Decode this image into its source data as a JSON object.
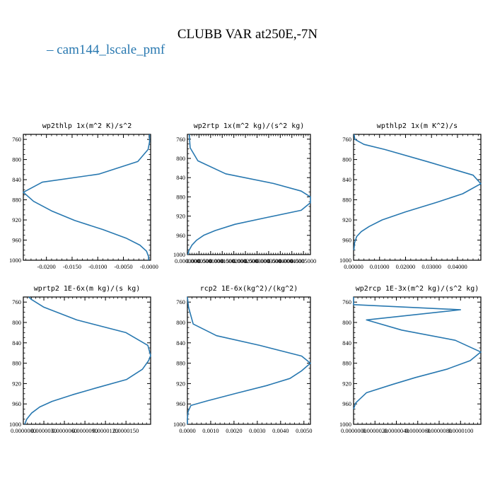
{
  "figure": {
    "title": "CLUBB VAR at250E,-7N",
    "legend": [
      {
        "name": "cam144_lscale_pmf",
        "color": "#2878b0"
      }
    ]
  },
  "chart_data": [
    {
      "type": "line",
      "title": "wp2thlp   1x(m^2 K)/s^2",
      "xlim": [
        -0.0245,
        0.0003
      ],
      "ylim": [
        1000,
        750
      ],
      "xticks": [
        -0.02,
        -0.015,
        -0.01,
        -0.005,
        0.0
      ],
      "xtick_labels": [
        "-0.0200",
        "-0.0150",
        "-0.0100",
        "-0.0050",
        "-0.0000"
      ],
      "yticks": [
        760,
        800,
        840,
        880,
        920,
        960,
        1000
      ],
      "ytick_labels": [
        "760",
        "800",
        "840",
        "880",
        "920",
        "960",
        "1000"
      ],
      "series": [
        {
          "color": "#2878b0",
          "x": [
            0.0001,
            0.0001,
            -0.0002,
            -0.0022,
            -0.0098,
            -0.0208,
            -0.0245,
            -0.0225,
            -0.019,
            -0.0145,
            -0.009,
            -0.0045,
            -0.0018,
            -0.0005,
            -0.0001,
            -0.0001
          ],
          "y": [
            750,
            765,
            780,
            804,
            829,
            845,
            865,
            883,
            902,
            921,
            939,
            956,
            970,
            982,
            993,
            1000
          ]
        }
      ]
    },
    {
      "type": "line",
      "title": "wp2rtp   1x(m^2 kg)/(s^2 kg)",
      "xlim": [
        0.0,
        0.00053
      ],
      "ylim": [
        1000,
        750
      ],
      "xticks": [
        0.0,
        5e-05,
        0.0001,
        0.00015,
        0.0002,
        0.00025,
        0.0003,
        0.00035,
        0.0004,
        0.00045,
        0.0005
      ],
      "xtick_labels": [
        "0.0000000",
        "0.0000500",
        "0.0001000",
        "0.0001500",
        "0.0002000",
        "0.0002500",
        "0.0003000",
        "0.0003500",
        "0.0004000",
        "0.0004500",
        "0.0005000"
      ],
      "yticks": [
        760,
        800,
        840,
        880,
        920,
        960,
        1000
      ],
      "ytick_labels": [
        "760",
        "800",
        "840",
        "880",
        "920",
        "960",
        "1000"
      ],
      "series": [
        {
          "color": "#2878b0",
          "x": [
            8e-06,
            1e-05,
            1.2e-05,
            4.5e-05,
            0.000165,
            0.00037,
            0.00049,
            0.00053,
            0.00053,
            0.00049,
            0.00035,
            0.000205,
            0.00012,
            7e-05,
            4e-05,
            2e-05,
            6e-06,
            2e-06
          ],
          "y": [
            750,
            765,
            778,
            805,
            832,
            852,
            868,
            880,
            892,
            908,
            922,
            937,
            950,
            960,
            970,
            980,
            992,
            1000
          ]
        }
      ]
    },
    {
      "type": "line",
      "title": "wpthlp2   1x(m K^2)/s",
      "xlim": [
        0.0,
        0.049
      ],
      "ylim": [
        1000,
        750
      ],
      "xticks": [
        0.0,
        0.01,
        0.02,
        0.03,
        0.04
      ],
      "xtick_labels": [
        "0.00000",
        "0.01000",
        "0.02000",
        "0.03000",
        "0.04000"
      ],
      "yticks": [
        760,
        800,
        840,
        880,
        920,
        960,
        1000
      ],
      "ytick_labels": [
        "760",
        "800",
        "840",
        "880",
        "920",
        "960",
        "1000"
      ],
      "series": [
        {
          "color": "#2878b0",
          "x": [
            0.0002,
            0.0005,
            0.004,
            0.012,
            0.029,
            0.046,
            0.049,
            0.042,
            0.032,
            0.02,
            0.011,
            0.006,
            0.003,
            0.0012,
            0.0004,
            0.0001
          ],
          "y": [
            750,
            760,
            770,
            780,
            805,
            831,
            848,
            868,
            885,
            904,
            920,
            933,
            943,
            953,
            965,
            980
          ]
        }
      ]
    },
    {
      "type": "line",
      "title": "wprtp2   1E-6x(m kg)/(s kg)",
      "xlim": [
        0.0,
        1.86e-05
      ],
      "ylim": [
        1000,
        750
      ],
      "xticks": [
        0.0,
        3e-06,
        6e-06,
        9e-06,
        1.2e-05,
        1.5e-05
      ],
      "xtick_labels": [
        "0.0000000",
        "0.0000030",
        "0.0000060",
        "0.0000090",
        "0.0000120",
        "0.0000150"
      ],
      "yticks": [
        760,
        800,
        840,
        880,
        920,
        960,
        1000
      ],
      "ytick_labels": [
        "760",
        "800",
        "840",
        "880",
        "920",
        "960",
        "1000"
      ],
      "series": [
        {
          "color": "#2878b0",
          "x": [
            8e-07,
            1.2e-06,
            3e-06,
            7.8e-06,
            1.5e-05,
            1.82e-05,
            1.86e-05,
            1.83e-05,
            1.74e-05,
            1.51e-05,
            1.08e-05,
            7.2e-06,
            4.2e-06,
            2.4e-06,
            1.2e-06,
            5e-07,
            2e-07
          ],
          "y": [
            750,
            755,
            770,
            795,
            820,
            845,
            865,
            875,
            892,
            912,
            928,
            942,
            955,
            966,
            978,
            990,
            1000
          ]
        }
      ]
    },
    {
      "type": "line",
      "title": "rcp2   1E-6x(kg^2)/(kg^2)",
      "xlim": [
        0.0,
        0.00528
      ],
      "ylim": [
        1000,
        750
      ],
      "xticks": [
        0.0,
        0.001,
        0.002,
        0.003,
        0.004,
        0.005
      ],
      "xtick_labels": [
        "0.0000",
        "0.0010",
        "0.0020",
        "0.0030",
        "0.0040",
        "0.0050"
      ],
      "yticks": [
        760,
        800,
        840,
        880,
        920,
        960,
        1000
      ],
      "ytick_labels": [
        "760",
        "800",
        "840",
        "880",
        "920",
        "960",
        "1000"
      ],
      "series": [
        {
          "color": "#2878b0",
          "x": [
            0.0,
            5e-05,
            0.00025,
            0.00125,
            0.0031,
            0.0049,
            0.00528,
            0.0049,
            0.0044,
            0.0034,
            0.0021,
            0.00085,
            0.00015,
            3e-05,
            0.0,
            0.0
          ],
          "y": [
            750,
            770,
            803,
            826,
            845,
            866,
            880,
            895,
            910,
            924,
            939,
            954,
            963,
            975,
            990,
            1000
          ]
        }
      ]
    },
    {
      "type": "line",
      "title": "wp2rcp   1E-3x(m^2 kg)/(s^2 kg)",
      "xlim": [
        0.0,
        1.19e-05
      ],
      "ylim": [
        1000,
        750
      ],
      "xticks": [
        0.0,
        2e-06,
        4e-06,
        6e-06,
        8e-06,
        1e-05
      ],
      "xtick_labels": [
        "0.0000000",
        "0.0000020",
        "0.0000040",
        "0.0000060",
        "0.0000080",
        "0.0000100"
      ],
      "yticks": [
        760,
        800,
        840,
        880,
        920,
        960,
        1000
      ],
      "ytick_labels": [
        "760",
        "800",
        "840",
        "880",
        "920",
        "960",
        "1000"
      ],
      "series": [
        {
          "color": "#2878b0",
          "x": [
            0.0,
            0.0,
            1e-05,
            1.2e-06,
            4.5e-06,
            9.5e-06,
            1.19e-05,
            1.09e-05,
            8.7e-06,
            5.8e-06,
            3.6e-06,
            1.2e-06,
            2e-07,
            0.0
          ],
          "y": [
            750,
            765,
            775,
            795,
            815,
            835,
            858,
            875,
            892,
            908,
            922,
            938,
            958,
            970
          ]
        }
      ]
    }
  ]
}
